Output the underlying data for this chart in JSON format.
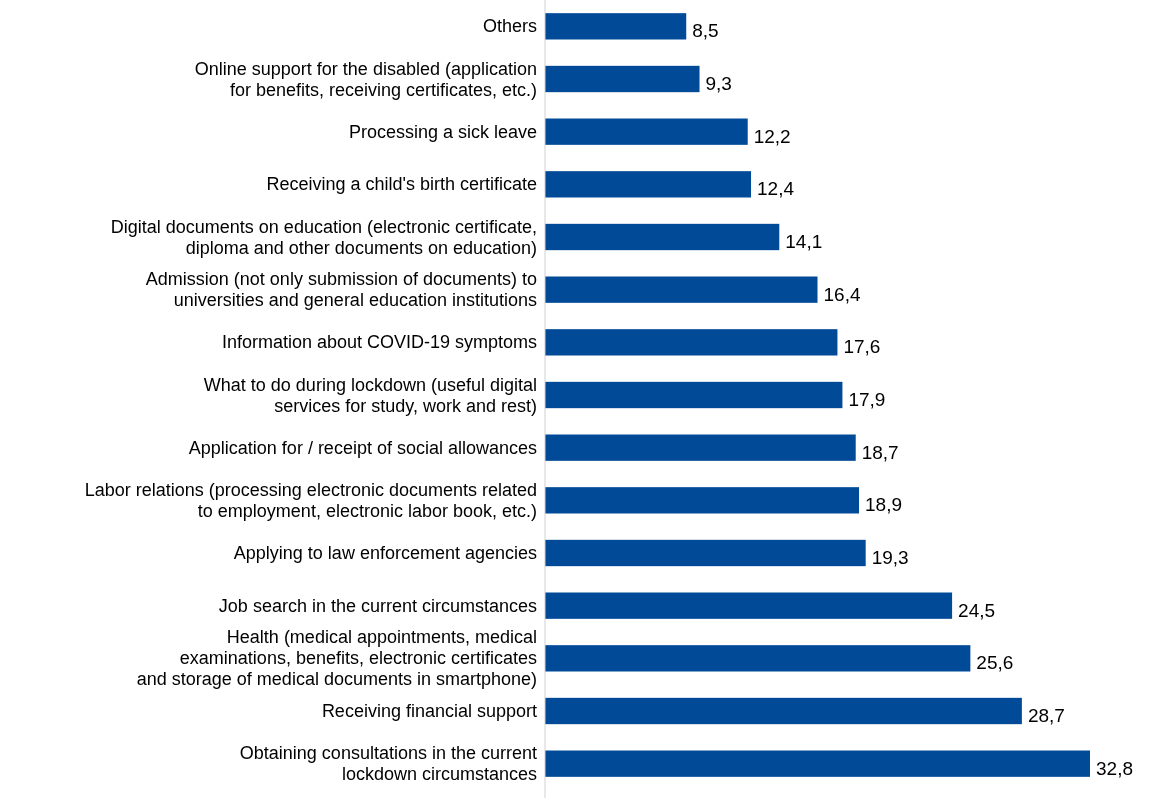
{
  "chart_data": {
    "type": "bar",
    "orientation": "horizontal",
    "relative": false,
    "color": "#004a98",
    "categories": [
      "Others",
      "Online support for the disabled (application\nfor benefits, receiving certificates, etc.)",
      "Processing a sick leave",
      "Receiving a child's birth certificate",
      "Digital documents on education (electronic certificate,\ndiploma and other documents on education)",
      "Admission (not only submission of documents) to\nuniversities and general education institutions",
      "Information about COVID-19 symptoms",
      "What to do during lockdown (useful digital\nservices for study, work and rest)",
      "Application for / receipt of social allowances",
      "Labor relations (processing electronic documents related\nto employment, electronic labor book, etc.)",
      "Applying to law enforcement agencies",
      "Job search in the current circumstances",
      "Health (medical appointments, medical\nexaminations, benefits, electronic certificates\nand storage of medical documents in smartphone)",
      "Receiving financial support",
      "Obtaining consultations in the current\nlockdown circumstances"
    ],
    "values": [
      8.5,
      9.3,
      12.2,
      12.4,
      14.1,
      16.4,
      17.6,
      17.9,
      18.7,
      18.9,
      19.3,
      24.5,
      25.6,
      28.7,
      32.8
    ],
    "value_labels": [
      "8,5",
      "9,3",
      "12,2",
      "12,4",
      "14,1",
      "16,4",
      "17,6",
      "17,9",
      "18,7",
      "18,9",
      "19,3",
      "24,5",
      "25,6",
      "28,7",
      "32,8"
    ]
  }
}
